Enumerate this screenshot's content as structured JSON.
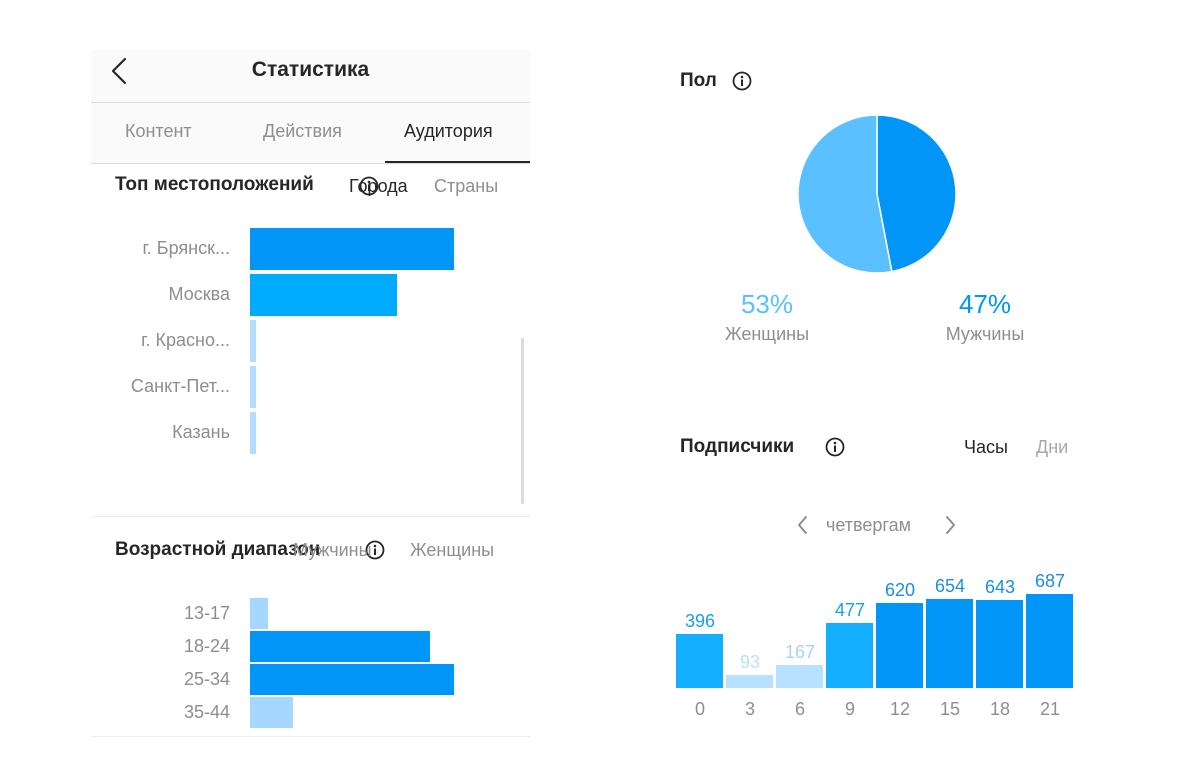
{
  "header": {
    "title": "Статистика"
  },
  "tabs": [
    {
      "label": "Контент",
      "active": false
    },
    {
      "label": "Действия",
      "active": false
    },
    {
      "label": "Аудитория",
      "active": true
    }
  ],
  "locations": {
    "title": "Топ местоположений",
    "toggle": {
      "on": "Города",
      "off": "Страны"
    },
    "chart_data": {
      "type": "bar",
      "orientation": "horizontal",
      "categories": [
        "г. Брянск...",
        "Москва",
        "г. Красно...",
        "Санкт-Пет...",
        "Казань"
      ],
      "values": [
        100,
        72,
        3,
        3,
        3
      ],
      "colors": [
        "#0095f6",
        "#00aaff",
        "#b3dcff",
        "#b3dcff",
        "#b3dcff"
      ]
    }
  },
  "age": {
    "title": "Возрастной диапазон",
    "toggle": {
      "on": "Мужчины",
      "off": "Женщины"
    },
    "chart_data": {
      "type": "bar",
      "orientation": "horizontal",
      "categories": [
        "13-17",
        "18-24",
        "25-34",
        "35-44"
      ],
      "values": [
        9,
        88,
        100,
        21
      ],
      "colors": [
        "#a6d8ff",
        "#0095f6",
        "#0095f6",
        "#a6d8ff"
      ]
    }
  },
  "gender": {
    "title": "Пол",
    "chart_data": {
      "type": "pie",
      "labels": [
        "Женщины",
        "Мужчины"
      ],
      "values": [
        53,
        47
      ],
      "value_labels": [
        "53%",
        "47%"
      ],
      "colors": [
        "#5bc0ff",
        "#0095f6"
      ]
    }
  },
  "followers": {
    "title": "Подписчики",
    "toggle": {
      "on": "Часы",
      "off": "Дни"
    },
    "day": "четвергам",
    "chart_data": {
      "type": "bar",
      "categories": [
        "0",
        "3",
        "6",
        "9",
        "12",
        "15",
        "18",
        "21"
      ],
      "values": [
        396,
        93,
        167,
        477,
        620,
        654,
        643,
        687
      ],
      "colors": [
        "#14b0ff",
        "#b8e1ff",
        "#b8e1ff",
        "#14b0ff",
        "#0095f6",
        "#0095f6",
        "#0095f6",
        "#0095f6"
      ],
      "label_colors": [
        "#1a9fe8",
        "#b8e1ff",
        "#a6d4f5",
        "#1a9fe8",
        "#1a8fe0",
        "#1a8fe0",
        "#1a8fe0",
        "#1a8fe0"
      ],
      "ylim": [
        0,
        687
      ]
    }
  },
  "icons": {
    "back": "chevron-left-icon",
    "info": "info-icon",
    "prev": "chevron-left-icon",
    "next": "chevron-right-icon"
  }
}
